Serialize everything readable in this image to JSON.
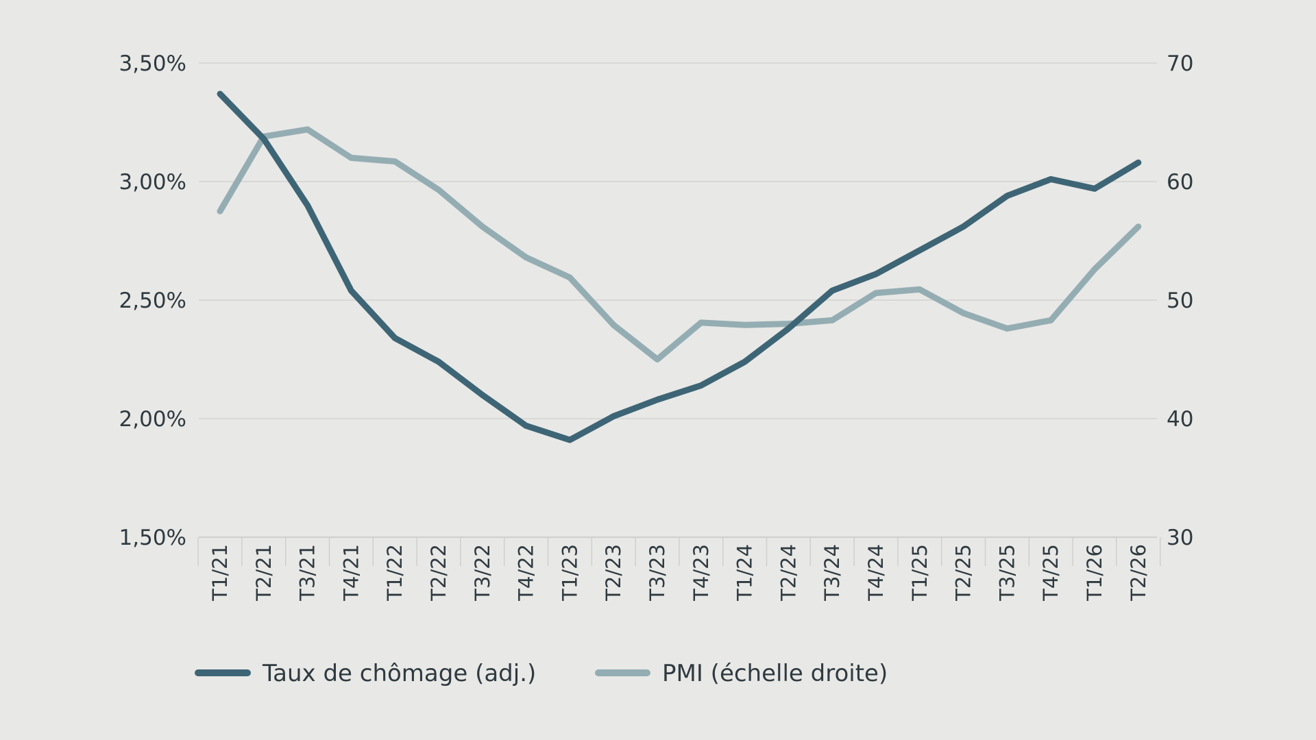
{
  "chart_data": {
    "type": "line",
    "title": "",
    "xlabel": "",
    "ylabel": "",
    "categories": [
      "T1/21",
      "T2/21",
      "T3/21",
      "T4/21",
      "T1/22",
      "T2/22",
      "T3/22",
      "T4/22",
      "T1/23",
      "T2/23",
      "T3/23",
      "T4/23",
      "T1/24",
      "T2/24",
      "T3/24",
      "T4/24",
      "T1/25",
      "T2/25",
      "T3/25",
      "T4/25",
      "T1/26",
      "T2/26"
    ],
    "y_left": {
      "ylim": [
        1.5,
        3.5
      ],
      "ticks": [
        1.5,
        2.0,
        2.5,
        3.0,
        3.5
      ],
      "tick_labels": [
        "1,50%",
        "2,00%",
        "2,50%",
        "3,00%",
        "3,50%"
      ]
    },
    "y_right": {
      "ylim": [
        30,
        70
      ],
      "ticks": [
        30,
        40,
        50,
        60,
        70
      ],
      "tick_labels": [
        "30",
        "40",
        "50",
        "60",
        "70"
      ]
    },
    "grid": true,
    "legend_position": "bottom-left",
    "series": [
      {
        "name": "Taux de chômage (adj.)",
        "axis": "left",
        "color": "#3d6575",
        "values": [
          3.37,
          3.18,
          2.9,
          2.54,
          2.34,
          2.24,
          2.1,
          1.97,
          1.91,
          2.01,
          2.08,
          2.14,
          2.24,
          2.38,
          2.54,
          2.61,
          2.71,
          2.81,
          2.94,
          3.01,
          2.97,
          3.08
        ]
      },
      {
        "name": "PMI (échelle droite)",
        "axis": "right",
        "color": "#94adb3",
        "values": [
          57.5,
          63.8,
          64.4,
          62.0,
          61.7,
          59.3,
          56.2,
          53.6,
          51.9,
          47.9,
          45.0,
          48.1,
          47.9,
          48.0,
          48.3,
          50.6,
          50.9,
          48.9,
          47.6,
          48.3,
          52.6,
          56.2
        ]
      }
    ]
  }
}
